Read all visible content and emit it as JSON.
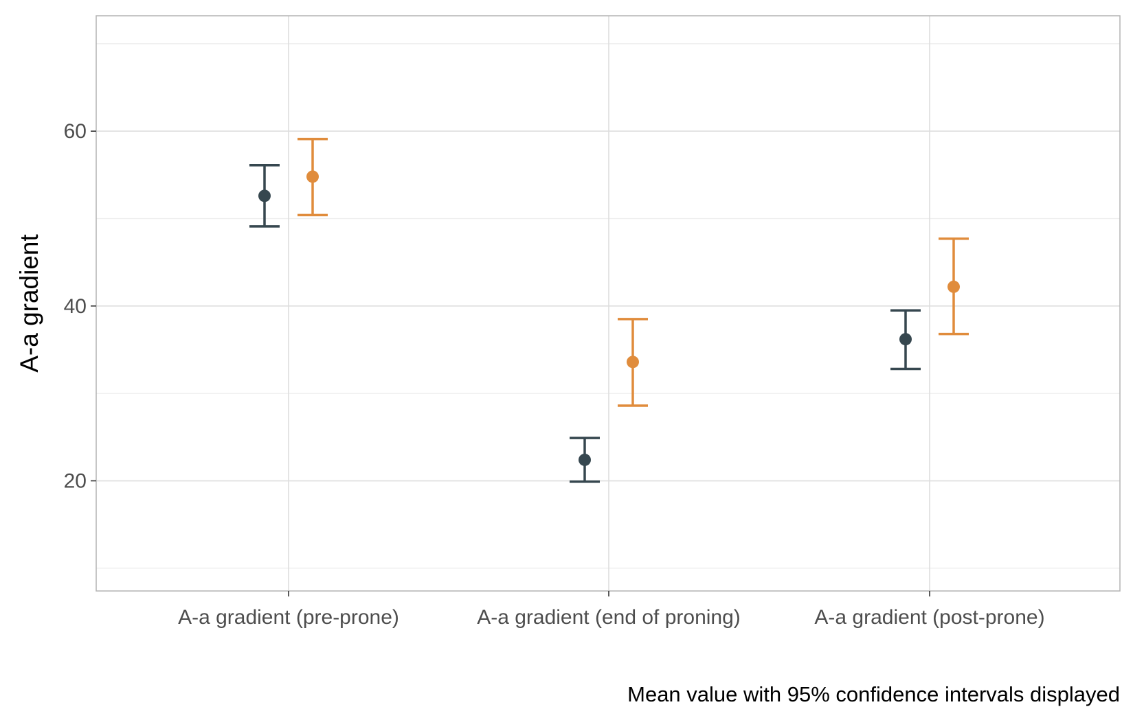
{
  "chart_data": {
    "type": "errorbar",
    "title": "",
    "xlabel": "",
    "ylabel": "A-a gradient",
    "caption": "Mean value with 95% confidence intervals displayed",
    "categories": [
      "A-a gradient (pre-prone)",
      "A-a gradient (end of proning)",
      "A-a gradient (post-prone)"
    ],
    "ylim": [
      7.4,
      73.2
    ],
    "yticks": [
      20,
      40,
      60
    ],
    "y_minor_gridlines": [
      10,
      30,
      50,
      70
    ],
    "grid": true,
    "legend": "none",
    "series": [
      {
        "color": "#36474f",
        "mean": [
          52.6,
          22.4,
          36.2
        ],
        "lower": [
          49.1,
          19.9,
          32.8
        ],
        "upper": [
          56.1,
          24.9,
          39.5
        ]
      },
      {
        "color": "#e08c3c",
        "mean": [
          54.8,
          33.6,
          42.2
        ],
        "lower": [
          50.4,
          28.6,
          36.8
        ],
        "upper": [
          59.1,
          38.5,
          47.7
        ]
      }
    ]
  }
}
